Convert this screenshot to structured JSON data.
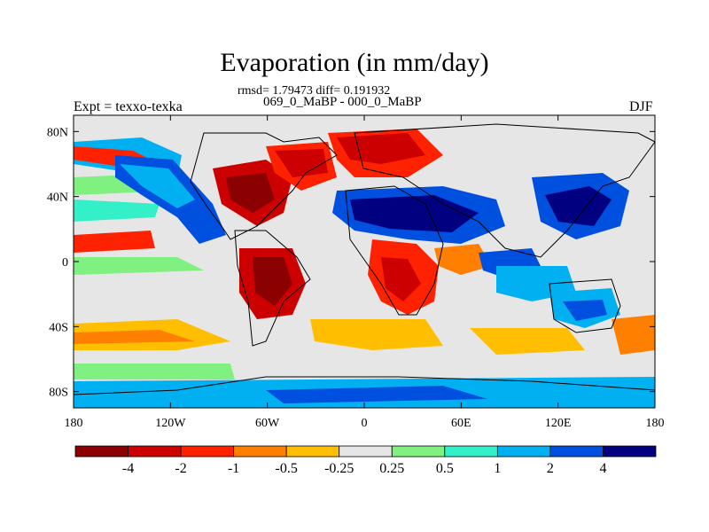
{
  "title": "Evaporation (in mm/day)",
  "subtitle": "rmsd= 1.79473 diff= 0.191932",
  "left_string": "Expt = texxo-texka",
  "center_string": "069_0_MaBP - 000_0_MaBP",
  "right_string": "DJF",
  "lat_axis": [
    {
      "label": "80N",
      "value": 80
    },
    {
      "label": "40N",
      "value": 40
    },
    {
      "label": "0",
      "value": 0
    },
    {
      "label": "40S",
      "value": -40
    },
    {
      "label": "80S",
      "value": -80
    }
  ],
  "lon_axis": [
    {
      "label": "180",
      "value": -180
    },
    {
      "label": "120W",
      "value": -120
    },
    {
      "label": "60W",
      "value": -60
    },
    {
      "label": "0",
      "value": 0
    },
    {
      "label": "60E",
      "value": 60
    },
    {
      "label": "120E",
      "value": 120
    },
    {
      "label": "180",
      "value": 180
    }
  ],
  "colorbar": {
    "colors": [
      "#8b0000",
      "#cc0000",
      "#ff2200",
      "#ff7f00",
      "#ffbf00",
      "#e6e6e6",
      "#80f080",
      "#33f0c8",
      "#00b0f0",
      "#0050e0",
      "#000080"
    ],
    "labels": [
      "-4",
      "-2",
      "-1",
      "-0.5",
      "-0.25",
      "0.25",
      "0.5",
      "1",
      "2",
      "4"
    ]
  },
  "chart_data": {
    "type": "contour-map",
    "title": "Evaporation (in mm/day)",
    "variable": "Evaporation difference",
    "units": "mm/day",
    "season": "DJF",
    "experiment": "Expt = texxo-texka",
    "comparison": "069_0_MaBP - 000_0_MaBP",
    "statistics": {
      "rmsd": 1.79473,
      "diff": 0.191932
    },
    "lon_range": [
      -180,
      180
    ],
    "lat_range": [
      -90,
      90
    ],
    "contour_levels": [
      -4,
      -2,
      -1,
      -0.5,
      -0.25,
      0.25,
      0.5,
      1,
      2,
      4
    ],
    "regions": [
      {
        "lon": [
          -100,
          -80
        ],
        "lat": [
          20,
          50
        ],
        "level": "-4"
      },
      {
        "lon": [
          -140,
          -90
        ],
        "lat": [
          35,
          60
        ],
        "level": "2"
      },
      {
        "lon": [
          0,
          40
        ],
        "lat": [
          20,
          40
        ],
        "level": "4"
      },
      {
        "lon": [
          90,
          130
        ],
        "lat": [
          30,
          50
        ],
        "level": "4"
      },
      {
        "lon": [
          -60,
          -30
        ],
        "lat": [
          -10,
          15
        ],
        "level": "-2"
      }
    ]
  }
}
